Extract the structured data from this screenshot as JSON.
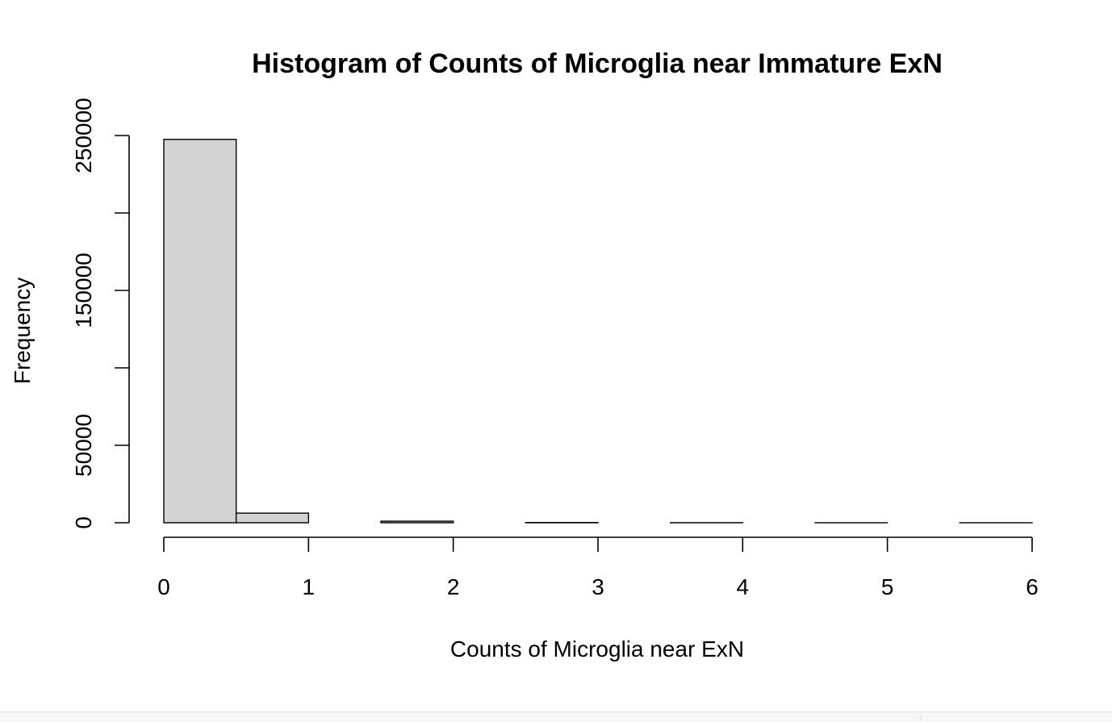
{
  "chart_data": {
    "type": "bar",
    "title": "Histogram of Counts of Microglia near Immature ExN",
    "xlabel": "Counts of Microglia near ExN",
    "ylabel": "Frequency",
    "bins": [
      {
        "start": 0,
        "end": 0.5,
        "count": 247500
      },
      {
        "start": 0.5,
        "end": 1,
        "count": 6200
      },
      {
        "start": 1,
        "end": 1.5,
        "count": 0
      },
      {
        "start": 1.5,
        "end": 2,
        "count": 1000
      },
      {
        "start": 2,
        "end": 2.5,
        "count": 0
      },
      {
        "start": 2.5,
        "end": 3,
        "count": 150
      },
      {
        "start": 3,
        "end": 3.5,
        "count": 0
      },
      {
        "start": 3.5,
        "end": 4,
        "count": 50
      },
      {
        "start": 4,
        "end": 4.5,
        "count": 0
      },
      {
        "start": 4.5,
        "end": 5,
        "count": 10
      },
      {
        "start": 5,
        "end": 5.5,
        "count": 0
      },
      {
        "start": 5.5,
        "end": 6,
        "count": 5
      }
    ],
    "xlim": [
      0,
      6
    ],
    "ylim": [
      0,
      250000
    ],
    "x_ticks": [
      "0",
      "1",
      "2",
      "3",
      "4",
      "5",
      "6"
    ],
    "y_ticks": [
      "0",
      "50000",
      "150000",
      "250000"
    ],
    "y_tick_marks": [
      0,
      50000,
      100000,
      150000,
      200000,
      250000
    ],
    "bar_fill": "#d3d3d3",
    "bar_stroke": "#000000",
    "grid": false,
    "legend": "none"
  }
}
